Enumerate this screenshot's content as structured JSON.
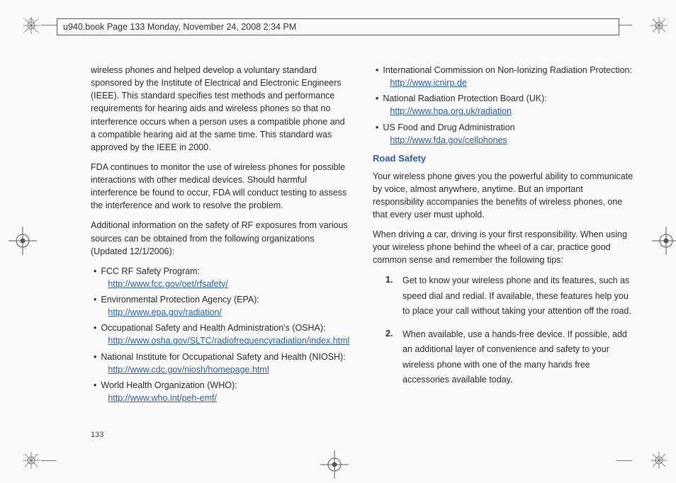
{
  "header": "u940.book  Page 133  Monday, November 24, 2008  2:34 PM",
  "pageNumber": "133",
  "colLeft": {
    "p1": "wireless phones and helped develop a voluntary standard sponsored by the Institute of Electrical and Electronic Engineers (IEEE). This standard specifies test methods and performance requirements for hearing aids and wireless phones so that no interference occurs when a person uses a compatible phone and a compatible hearing aid at the same time. This standard was approved by the IEEE in 2000.",
    "p2": "FDA continues to monitor the use of wireless phones for possible interactions with other medical devices. Should harmful interference be found to occur, FDA will conduct testing to assess the interference and work to resolve the problem.",
    "p3": "Additional information on the safety of RF exposures from various sources can be obtained from the following organizations (Updated 12/1/2006):",
    "bullets": [
      {
        "label": "FCC RF Safety Program:",
        "url": "http://www.fcc.gov/oet/rfsafety/"
      },
      {
        "label": "Environmental Protection Agency (EPA):",
        "url": "http://www.epa.gov/radiation/"
      },
      {
        "label": "Occupational Safety and Health Administration's (OSHA):",
        "url": "http://www.osha.gov/SLTC/radiofrequencyradiation/index.html"
      },
      {
        "label": "National Institute for Occupational Safety and Health (NIOSH):",
        "url": "http://www.cdc.gov/niosh/homepage.html"
      },
      {
        "label": "World Health Organization (WHO):",
        "url": "http://www.who.int/peh-emf/"
      }
    ]
  },
  "colRight": {
    "bullets": [
      {
        "label": "International Commission on Non-Ionizing Radiation Protection:",
        "url": "http://www.icnirp.de"
      },
      {
        "label": "National Radiation Protection Board (UK):",
        "url": "http://www.hpa.org.uk/radiation"
      },
      {
        "label": "US Food and Drug Administration",
        "url": "http://www.fda.gov/cellphones"
      }
    ],
    "sectionHead": "Road Safety",
    "p1": "Your wireless phone gives you the powerful ability to communicate by voice, almost anywhere, anytime. But an important responsibility accompanies the benefits of wireless phones, one that every user must uphold.",
    "p2": "When driving a car, driving is your first responsibility. When using your wireless phone behind the wheel of a car, practice good common sense and remember the following tips:",
    "numbered": [
      {
        "n": "1.",
        "t": "Get to know your wireless phone and its features, such as speed dial and redial. If available, these features help you to place your call without taking your attention off the road."
      },
      {
        "n": "2.",
        "t": "When available, use a hands-free device. If possible, add an additional layer of convenience and safety to your wireless phone with one of the many hands free accessories available today."
      }
    ]
  },
  "marks": {
    "burstColor": "#666",
    "lineColor": "#777"
  }
}
